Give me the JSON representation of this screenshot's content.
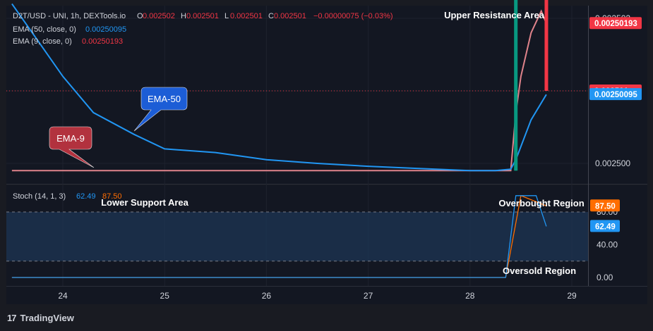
{
  "legend": {
    "symbol": "D2T/USD - UNI, 1h, DEXTools.io",
    "ohlc": [
      {
        "k": "O",
        "v": "0.002502"
      },
      {
        "k": "H",
        "v": "0.002501"
      },
      {
        "k": "L",
        "v": "0.002501"
      },
      {
        "k": "C",
        "v": "0.002501"
      }
    ],
    "change": "−0.00000075 (−0.03%)",
    "ema50_label": "EMA (50, close, 0)",
    "ema50_value": "0.00250095",
    "ema9_label": "EMA (9, close, 0)",
    "ema9_value": "0.00250193",
    "stoch_label": "Stoch (14, 1, 3)",
    "stoch_k": "62.49",
    "stoch_d": "87.50"
  },
  "annotations": {
    "upper_resistance": "Upper Resistance Area",
    "lower_support": "Lower Support Area",
    "overbought": "Overbought Region",
    "oversold": "Oversold Region",
    "ema50_callout": "EMA-50",
    "ema9_callout": "EMA-9"
  },
  "price_axis": {
    "ticks": [
      "0.002502",
      "0.002501",
      "0.002500"
    ],
    "badges": [
      "0.00250193",
      "0.002501",
      "0.00250095"
    ]
  },
  "stoch_axis": {
    "ticks": [
      "80.00",
      "40.00",
      "0.00"
    ],
    "badges": [
      "87.50",
      "62.49"
    ]
  },
  "time_axis": {
    "ticks": [
      "24",
      "25",
      "26",
      "27",
      "28",
      "29"
    ]
  },
  "footer": {
    "brand": "TradingView"
  },
  "colors": {
    "background": "#131722",
    "ema50": "#2196f3",
    "ema9": "#f23645",
    "up_candle": "#089981",
    "down_candle": "#f23645",
    "stoch_k": "#2196f3",
    "stoch_d": "#ff6d00",
    "band_fill": "#1e3554",
    "ema50_callout": "#1c5dd6",
    "ema9_callout": "#b2323e"
  },
  "chart_data": [
    {
      "type": "line",
      "title": "D2T/USD - UNI, 1h, DEXTools.io",
      "xlabel": "",
      "ylabel": "",
      "x_ticks": [
        "24",
        "25",
        "26",
        "27",
        "28",
        "29"
      ],
      "ylim": [
        0.0024997,
        0.0025024
      ],
      "series": [
        {
          "name": "EMA (50, close, 0)",
          "x": [
            23.5,
            23.8,
            24.0,
            24.3,
            24.7,
            25.0,
            25.5,
            26.0,
            26.5,
            27.0,
            27.5,
            28.0,
            28.25,
            28.4,
            28.45,
            28.6,
            28.75
          ],
          "values": [
            0.0025022,
            0.0025016,
            0.0025012,
            0.0025007,
            0.0025004,
            0.0025002,
            0.00250015,
            0.00250005,
            0.0025,
            0.00249996,
            0.00249993,
            0.0024999,
            0.0024999,
            0.00249992,
            0.00250005,
            0.0025006,
            0.00250095
          ]
        },
        {
          "name": "EMA (9, close, 0)",
          "x": [
            23.5,
            24.0,
            24.3,
            25.0,
            26.0,
            27.0,
            28.0,
            28.4,
            28.45,
            28.5,
            28.6,
            28.7,
            28.75
          ],
          "values": [
            0.0024999,
            0.0024999,
            0.0024999,
            0.0024999,
            0.0024999,
            0.0024999,
            0.0024999,
            0.0024999,
            0.0025007,
            0.0025012,
            0.0025018,
            0.0025021,
            0.00250193
          ]
        }
      ],
      "candles": [
        {
          "x": 28.45,
          "open": 0.0024999,
          "high": 0.0025024,
          "low": 0.0024999,
          "close": 0.0025024
        },
        {
          "x": 28.75,
          "open": 0.0025024,
          "high": 0.0025024,
          "low": 0.002501,
          "close": 0.002501
        }
      ],
      "last_price": 0.002501
    },
    {
      "type": "line",
      "title": "Stoch (14, 1, 3)",
      "xlabel": "",
      "ylabel": "",
      "x_ticks": [
        "24",
        "25",
        "26",
        "27",
        "28",
        "29"
      ],
      "ylim": [
        0,
        100
      ],
      "bands": [
        20,
        80
      ],
      "series": [
        {
          "name": "K",
          "x": [
            23.5,
            28.35,
            28.45,
            28.65,
            28.75
          ],
          "values": [
            0,
            0,
            100,
            100,
            62.49
          ]
        },
        {
          "name": "D",
          "x": [
            23.5,
            28.35,
            28.5,
            28.75
          ],
          "values": [
            0,
            0,
            100,
            87.5
          ]
        }
      ]
    }
  ]
}
